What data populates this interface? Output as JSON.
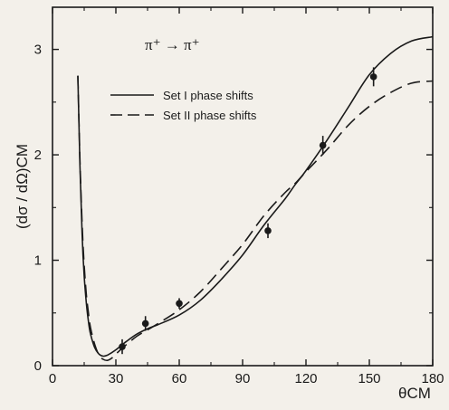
{
  "chart_data": {
    "type": "line",
    "annotation": "π⁺ → π⁺",
    "xlabel": "θCM",
    "ylabel": "(dσ / dΩ)CM",
    "xlim": [
      0,
      180
    ],
    "ylim": [
      0,
      3.4
    ],
    "xticks": [
      0,
      30,
      60,
      90,
      120,
      150,
      180
    ],
    "yticks": [
      0,
      1,
      2,
      3
    ],
    "grid": false,
    "legend_position": "top-left",
    "series": [
      {
        "name": "Set I  phase shifts",
        "style": "solid",
        "x": [
          12,
          13,
          14,
          15,
          16,
          17,
          18,
          20,
          22,
          24,
          26,
          30,
          35,
          40,
          45,
          50,
          60,
          70,
          80,
          90,
          100,
          110,
          115,
          120,
          130,
          140,
          150,
          160,
          170,
          180
        ],
        "y": [
          2.75,
          1.9,
          1.25,
          0.85,
          0.6,
          0.42,
          0.3,
          0.17,
          0.11,
          0.09,
          0.1,
          0.15,
          0.23,
          0.3,
          0.35,
          0.39,
          0.48,
          0.62,
          0.82,
          1.05,
          1.33,
          1.58,
          1.72,
          1.85,
          2.14,
          2.45,
          2.76,
          2.96,
          3.08,
          3.12
        ]
      },
      {
        "name": "Set II  phase shifts",
        "style": "dashed",
        "x": [
          12,
          13,
          14,
          15,
          16,
          17,
          18,
          20,
          22,
          24,
          26,
          28,
          30,
          35,
          40,
          45,
          50,
          60,
          70,
          80,
          90,
          100,
          110,
          115,
          120,
          130,
          140,
          150,
          160,
          170,
          180
        ],
        "y": [
          2.75,
          1.95,
          1.35,
          0.95,
          0.68,
          0.5,
          0.36,
          0.2,
          0.1,
          0.06,
          0.05,
          0.07,
          0.11,
          0.2,
          0.28,
          0.34,
          0.4,
          0.53,
          0.7,
          0.92,
          1.15,
          1.42,
          1.64,
          1.73,
          1.84,
          2.05,
          2.28,
          2.46,
          2.59,
          2.68,
          2.7
        ]
      }
    ],
    "data_points": {
      "x": [
        33,
        44,
        60,
        102,
        128,
        152
      ],
      "y": [
        0.18,
        0.4,
        0.59,
        1.28,
        2.09,
        2.74
      ],
      "err": [
        0.07,
        0.07,
        0.05,
        0.07,
        0.09,
        0.09
      ]
    }
  },
  "colors": {
    "line": "#1a1a1a",
    "background": "#f3f0ea"
  }
}
